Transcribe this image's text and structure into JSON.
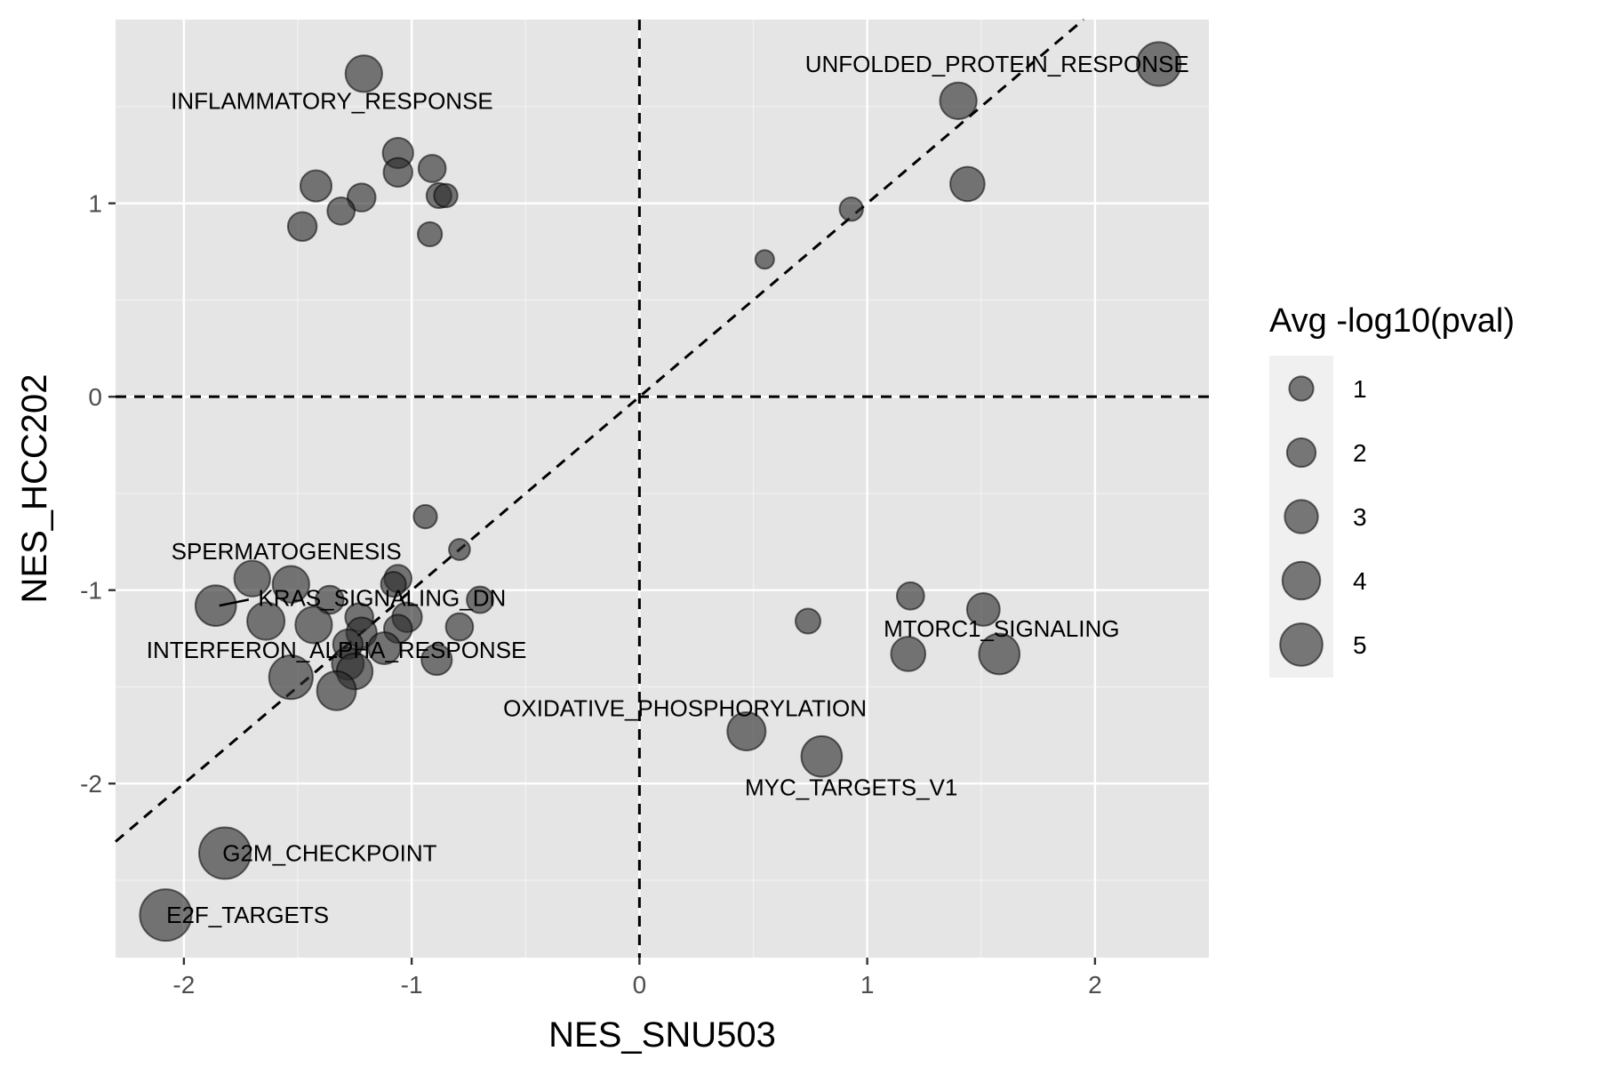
{
  "colors": {
    "panel_bg": "#e5e5e5",
    "grid_major": "#ffffff",
    "grid_minor": "#f2f2f2",
    "point_fill": "#2b2b2b",
    "point_stroke": "#000000",
    "legend_bg": "#f0f0f0",
    "reference_line": "#000000"
  },
  "chart_data": {
    "type": "scatter",
    "xlabel": "NES_SNU503",
    "ylabel": "NES_HCC202",
    "xlim": [
      -2.3,
      2.5
    ],
    "ylim": [
      -2.9,
      1.95
    ],
    "x_ticks": [
      -2,
      -1,
      0,
      1,
      2
    ],
    "y_ticks": [
      -2,
      -1,
      0,
      1
    ],
    "x_tick_labels": [
      "-2",
      "-1",
      "0",
      "1",
      "2"
    ],
    "y_tick_labels": [
      "-2",
      "-1",
      "0",
      "1"
    ],
    "grid": true,
    "reference_lines": [
      {
        "type": "vline",
        "x": 0,
        "style": "dashed"
      },
      {
        "type": "hline",
        "y": 0,
        "style": "dashed"
      },
      {
        "type": "diagonal",
        "slope": 1,
        "intercept": 0,
        "style": "dashed"
      }
    ],
    "size_legend": {
      "title": "Avg -log10(pval)",
      "position": "right",
      "values": [
        1,
        2,
        3,
        4,
        5
      ],
      "labels": [
        "1",
        "2",
        "3",
        "4",
        "5"
      ]
    },
    "points": [
      {
        "x": 2.28,
        "y": 1.72,
        "size": 4.0
      },
      {
        "x": 1.4,
        "y": 1.53,
        "size": 3.1
      },
      {
        "x": 1.44,
        "y": 1.1,
        "size": 2.8
      },
      {
        "x": 0.93,
        "y": 0.97,
        "size": 1.4
      },
      {
        "x": 0.55,
        "y": 0.71,
        "size": 0.8
      },
      {
        "x": -1.21,
        "y": 1.67,
        "size": 3.1
      },
      {
        "x": -1.06,
        "y": 1.26,
        "size": 2.3
      },
      {
        "x": -1.06,
        "y": 1.16,
        "size": 2.1
      },
      {
        "x": -0.91,
        "y": 1.18,
        "size": 1.9
      },
      {
        "x": -1.42,
        "y": 1.09,
        "size": 2.4
      },
      {
        "x": -1.22,
        "y": 1.03,
        "size": 2.0
      },
      {
        "x": -0.88,
        "y": 1.04,
        "size": 1.6
      },
      {
        "x": -0.85,
        "y": 1.04,
        "size": 1.4
      },
      {
        "x": -1.31,
        "y": 0.96,
        "size": 1.9
      },
      {
        "x": -1.48,
        "y": 0.88,
        "size": 2.1
      },
      {
        "x": -0.92,
        "y": 0.84,
        "size": 1.5
      },
      {
        "x": -0.94,
        "y": -0.62,
        "size": 1.4
      },
      {
        "x": -0.79,
        "y": -0.79,
        "size": 1.1
      },
      {
        "x": -1.7,
        "y": -0.94,
        "size": 3.0
      },
      {
        "x": -1.53,
        "y": -0.97,
        "size": 3.1
      },
      {
        "x": -1.06,
        "y": -0.94,
        "size": 1.9
      },
      {
        "x": -1.08,
        "y": -0.97,
        "size": 1.6
      },
      {
        "x": -0.7,
        "y": -1.05,
        "size": 1.8
      },
      {
        "x": -1.36,
        "y": -1.05,
        "size": 2.0
      },
      {
        "x": -1.86,
        "y": -1.08,
        "size": 3.6
      },
      {
        "x": -1.64,
        "y": -1.16,
        "size": 3.2
      },
      {
        "x": -1.43,
        "y": -1.18,
        "size": 3.1
      },
      {
        "x": -1.23,
        "y": -1.14,
        "size": 2.0
      },
      {
        "x": -1.02,
        "y": -1.14,
        "size": 2.2
      },
      {
        "x": -1.06,
        "y": -1.2,
        "size": 2.0
      },
      {
        "x": -0.79,
        "y": -1.19,
        "size": 1.9
      },
      {
        "x": -1.22,
        "y": -1.22,
        "size": 2.3
      },
      {
        "x": -1.28,
        "y": -1.28,
        "size": 2.2
      },
      {
        "x": -1.12,
        "y": -1.3,
        "size": 2.5
      },
      {
        "x": -1.28,
        "y": -1.38,
        "size": 2.5
      },
      {
        "x": -1.25,
        "y": -1.42,
        "size": 3.0
      },
      {
        "x": -0.89,
        "y": -1.36,
        "size": 2.3
      },
      {
        "x": -1.53,
        "y": -1.45,
        "size": 4.0
      },
      {
        "x": -1.33,
        "y": -1.52,
        "size": 3.4
      },
      {
        "x": 1.19,
        "y": -1.03,
        "size": 1.9
      },
      {
        "x": 0.74,
        "y": -1.16,
        "size": 1.6
      },
      {
        "x": 1.51,
        "y": -1.1,
        "size": 2.6
      },
      {
        "x": 1.18,
        "y": -1.33,
        "size": 2.8
      },
      {
        "x": 1.58,
        "y": -1.33,
        "size": 3.6
      },
      {
        "x": 0.47,
        "y": -1.73,
        "size": 3.3
      },
      {
        "x": 0.8,
        "y": -1.86,
        "size": 3.6
      },
      {
        "x": -1.82,
        "y": -2.36,
        "size": 5.0
      },
      {
        "x": -2.08,
        "y": -2.68,
        "size": 5.0
      }
    ],
    "annotations": [
      {
        "text": "UNFOLDED_PROTEIN_RESPONSE",
        "x": 1.57,
        "y": 1.72
      },
      {
        "text": "INFLAMMATORY_RESPONSE",
        "x": -1.35,
        "y": 1.53
      },
      {
        "text": "SPERMATOGENESIS",
        "x": -1.55,
        "y": -0.8
      },
      {
        "text": "KRAS_SIGNALING_DN",
        "x": -1.13,
        "y": -1.04,
        "leader_to": {
          "x": -1.86,
          "y": -1.08
        }
      },
      {
        "text": "INTERFERON_ALPHA_RESPONSE",
        "x": -1.33,
        "y": -1.31
      },
      {
        "text": "MTORC1_SIGNALING",
        "x": 1.59,
        "y": -1.2
      },
      {
        "text": "OXIDATIVE_PHOSPHORYLATION",
        "x": 0.2,
        "y": -1.61
      },
      {
        "text": "MYC_TARGETS_V1",
        "x": 0.93,
        "y": -2.02
      },
      {
        "text": "G2M_CHECKPOINT",
        "x": -1.36,
        "y": -2.36
      },
      {
        "text": "E2F_TARGETS",
        "x": -1.72,
        "y": -2.68
      }
    ]
  }
}
